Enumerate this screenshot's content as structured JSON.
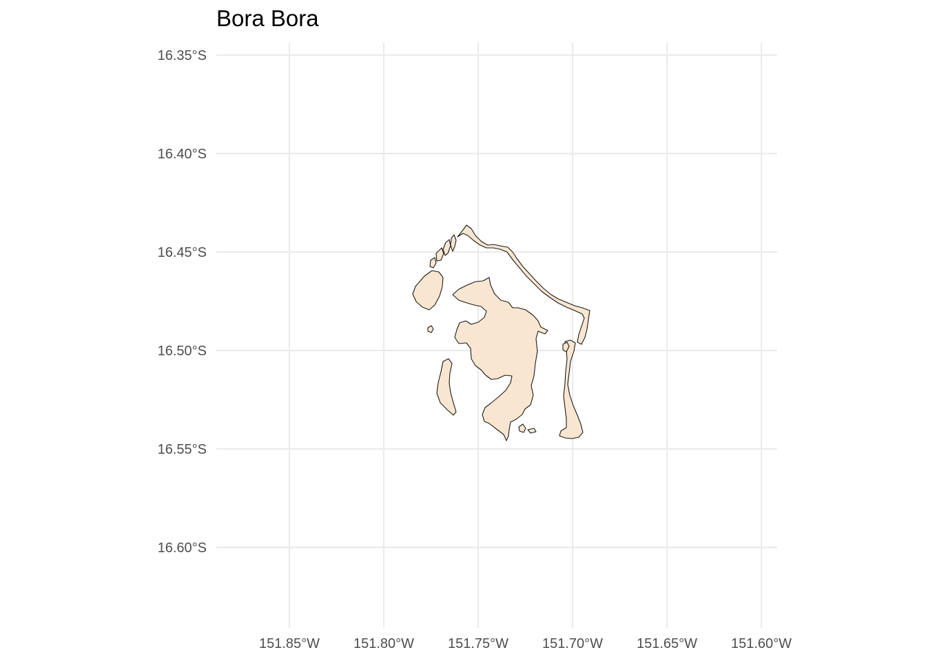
{
  "title": "Bora Bora",
  "chart_data": {
    "type": "map",
    "title": "Bora Bora",
    "x_ticks": [
      "151.85°W",
      "151.80°W",
      "151.75°W",
      "151.70°W",
      "151.65°W",
      "151.60°W"
    ],
    "y_ticks": [
      "16.35°S",
      "16.40°S",
      "16.45°S",
      "16.50°S",
      "16.55°S",
      "16.60°S"
    ],
    "longitude_values": [
      -151.85,
      -151.8,
      -151.75,
      -151.7,
      -151.65,
      -151.6
    ],
    "latitude_values": [
      -16.35,
      -16.4,
      -16.45,
      -16.5,
      -16.55,
      -16.6
    ],
    "grid": true,
    "colors": {
      "land_fill": "#f9e6d0",
      "land_outline": "#1a1a1a",
      "gridlines": "#ebebeb",
      "tick_text": "#4d4d4d"
    }
  }
}
